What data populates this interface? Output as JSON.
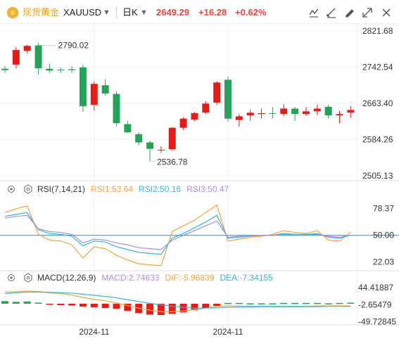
{
  "header": {
    "cn_name": "现货黄金",
    "symbol": "XAUUSD",
    "period": "日K",
    "last_price": "2649.29",
    "change": "+16.28",
    "change_pct": "+0.62%",
    "tools": [
      "crosshair-tool-icon",
      "draw-tool-icon",
      "pen-tool-icon",
      "trash-icon",
      "fullscreen-icon",
      "close-icon"
    ]
  },
  "colors": {
    "up": "#e31d1a",
    "down": "#27a05a",
    "accent": "#f0a020",
    "rsi1": "#f5a142",
    "rsi2": "#35b3d5",
    "rsi3": "#a98ce0",
    "macd": "#333333",
    "dif": "#f5a142",
    "dea": "#35b3d5",
    "ref_line": "#2a86d6"
  },
  "chart_data": [
    {
      "type": "candlestick",
      "title": "XAUUSD",
      "ylim": [
        2505.13,
        2821.68
      ],
      "y_ticks": [
        "2821.68",
        "2742.54",
        "2663.40",
        "2584.26",
        "2505.13"
      ],
      "x_ticks": [
        "2024-11",
        "2024-11"
      ],
      "annotations": {
        "high": "2790.02",
        "low": "2536.78"
      },
      "candles": [
        {
          "o": 2739,
          "h": 2745,
          "l": 2730,
          "c": 2736
        },
        {
          "o": 2748,
          "h": 2786,
          "l": 2740,
          "c": 2780
        },
        {
          "o": 2778,
          "h": 2792,
          "l": 2772,
          "c": 2789
        },
        {
          "o": 2790,
          "h": 2795,
          "l": 2726,
          "c": 2740
        },
        {
          "o": 2739,
          "h": 2750,
          "l": 2730,
          "c": 2735
        },
        {
          "o": 2737,
          "h": 2742,
          "l": 2730,
          "c": 2736
        },
        {
          "o": 2738,
          "h": 2745,
          "l": 2730,
          "c": 2736
        },
        {
          "o": 2742,
          "h": 2748,
          "l": 2645,
          "c": 2657
        },
        {
          "o": 2660,
          "h": 2712,
          "l": 2648,
          "c": 2706
        },
        {
          "o": 2703,
          "h": 2716,
          "l": 2680,
          "c": 2685
        },
        {
          "o": 2684,
          "h": 2690,
          "l": 2613,
          "c": 2620
        },
        {
          "o": 2618,
          "h": 2625,
          "l": 2598,
          "c": 2600
        },
        {
          "o": 2596,
          "h": 2600,
          "l": 2572,
          "c": 2578
        },
        {
          "o": 2578,
          "h": 2582,
          "l": 2537,
          "c": 2564
        },
        {
          "o": 2562,
          "h": 2570,
          "l": 2555,
          "c": 2562
        },
        {
          "o": 2563,
          "h": 2612,
          "l": 2560,
          "c": 2610
        },
        {
          "o": 2610,
          "h": 2633,
          "l": 2605,
          "c": 2630
        },
        {
          "o": 2628,
          "h": 2645,
          "l": 2625,
          "c": 2642
        },
        {
          "o": 2643,
          "h": 2668,
          "l": 2640,
          "c": 2663
        },
        {
          "o": 2665,
          "h": 2712,
          "l": 2660,
          "c": 2709
        },
        {
          "o": 2715,
          "h": 2722,
          "l": 2624,
          "c": 2630
        },
        {
          "o": 2627,
          "h": 2640,
          "l": 2612,
          "c": 2635
        },
        {
          "o": 2637,
          "h": 2650,
          "l": 2625,
          "c": 2643
        },
        {
          "o": 2640,
          "h": 2652,
          "l": 2630,
          "c": 2642
        },
        {
          "o": 2642,
          "h": 2655,
          "l": 2630,
          "c": 2641
        },
        {
          "o": 2640,
          "h": 2662,
          "l": 2635,
          "c": 2652
        },
        {
          "o": 2652,
          "h": 2656,
          "l": 2625,
          "c": 2640
        },
        {
          "o": 2640,
          "h": 2656,
          "l": 2636,
          "c": 2646
        },
        {
          "o": 2646,
          "h": 2660,
          "l": 2638,
          "c": 2652
        },
        {
          "o": 2656,
          "h": 2660,
          "l": 2630,
          "c": 2637
        },
        {
          "o": 2637,
          "h": 2647,
          "l": 2620,
          "c": 2640
        },
        {
          "o": 2643,
          "h": 2658,
          "l": 2632,
          "c": 2649
        }
      ]
    },
    {
      "type": "line",
      "title": "RSI(7,14,21)",
      "ylim": [
        15,
        92
      ],
      "y_ticks": [
        "78.37",
        "50.00",
        "22.03"
      ],
      "reference_line": 50,
      "legend": [
        "RSI1:53.64",
        "RSI2:50.16",
        "RSI3:50.47"
      ],
      "series": [
        {
          "name": "RSI1",
          "values": [
            74,
            78,
            81,
            51,
            45,
            44,
            40,
            26,
            38,
            36,
            29,
            24,
            20,
            19,
            18,
            54,
            60,
            66,
            74,
            82,
            44,
            46,
            48,
            49,
            51,
            55,
            53,
            52,
            55,
            45,
            44,
            53.64
          ]
        },
        {
          "name": "RSI2",
          "values": [
            70,
            72,
            74,
            56,
            52,
            51,
            49,
            39,
            44,
            43,
            38,
            35,
            32,
            31,
            30,
            47,
            52,
            58,
            64,
            71,
            47,
            48,
            49,
            50,
            50,
            52,
            51,
            51,
            52,
            48,
            47,
            50.16
          ]
        },
        {
          "name": "RSI3",
          "values": [
            68,
            70,
            71,
            57,
            54,
            53,
            51,
            42,
            46,
            45,
            42,
            40,
            37,
            36,
            35,
            45,
            50,
            55,
            60,
            65,
            48,
            49,
            49,
            50,
            50,
            51,
            51,
            51,
            51,
            49,
            48,
            50.47
          ]
        }
      ]
    },
    {
      "type": "bar",
      "title": "MACD(12,26,9)",
      "ylim": [
        -58,
        52
      ],
      "y_ticks": [
        "44.41887",
        "-2.65479",
        "-49.72845"
      ],
      "legend": [
        "MACD:2.74633",
        "DIF:-5.96839",
        "DEA:-7.34155"
      ],
      "macd_values": [
        7,
        5,
        6,
        3,
        -2,
        -4,
        -5,
        -8,
        -10,
        -12,
        -14,
        -20,
        -26,
        -30,
        -31,
        -28,
        -24,
        -18,
        -12,
        -6,
        2,
        2,
        1,
        1,
        1,
        2,
        2,
        2,
        2,
        1,
        2,
        2.74633
      ],
      "series": [
        {
          "name": "DIF",
          "values": [
            32,
            33,
            35,
            33,
            30,
            28,
            24,
            17,
            12,
            8,
            2,
            -5,
            -12,
            -18,
            -22,
            -22,
            -20,
            -16,
            -12,
            -7,
            -6,
            -6,
            -7,
            -7,
            -7,
            -7,
            -7,
            -7,
            -6,
            -6,
            -6,
            -5.96839
          ]
        },
        {
          "name": "DEA",
          "values": [
            28,
            30,
            32,
            32,
            31,
            30,
            29,
            26,
            23,
            20,
            16,
            11,
            6,
            1,
            -3,
            -7,
            -10,
            -12,
            -12,
            -11,
            -10,
            -9,
            -9,
            -8,
            -8,
            -8,
            -8,
            -8,
            -8,
            -7,
            -7,
            -7.34155
          ]
        }
      ]
    }
  ]
}
